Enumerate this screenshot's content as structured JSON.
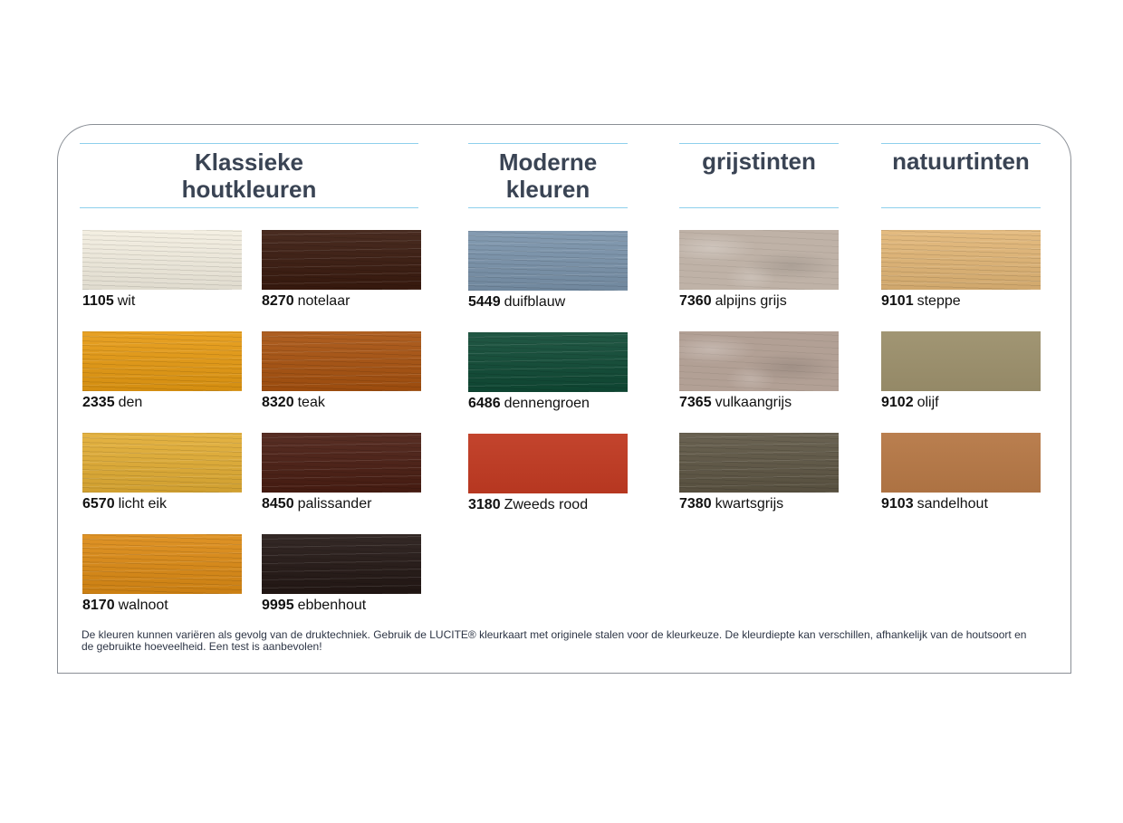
{
  "headings": {
    "classic": {
      "line1": "Klassieke",
      "line2": "houtkleuren"
    },
    "modern": {
      "line1": "Moderne",
      "line2": "kleuren"
    },
    "grey": "grijstinten",
    "nature": "natuurtinten"
  },
  "swatches": [
    {
      "code": "1105",
      "name": "wit",
      "color": "#f3eee0"
    },
    {
      "code": "8270",
      "name": "notelaar",
      "color": "#3a1a0e"
    },
    {
      "code": "2335",
      "name": "den",
      "color": "#e69a12"
    },
    {
      "code": "8320",
      "name": "teak",
      "color": "#a8520f"
    },
    {
      "code": "6570",
      "name": "licht eik",
      "color": "#e2ad34"
    },
    {
      "code": "8450",
      "name": "palissander",
      "color": "#4a1d12"
    },
    {
      "code": "8170",
      "name": "walnoot",
      "color": "#dc8a14"
    },
    {
      "code": "9995",
      "name": "ebbenhout",
      "color": "#231714"
    },
    {
      "code": "5449",
      "name": "duifblauw",
      "color": "#7a93ab"
    },
    {
      "code": "6486",
      "name": "dennengroen",
      "color": "#0f4a35"
    },
    {
      "code": "3180",
      "name": "Zweeds rood",
      "color": "#c03a22"
    },
    {
      "code": "7360",
      "name": "alpijns grijs",
      "color": "#bfb2a7"
    },
    {
      "code": "7365",
      "name": "vulkaangrijs",
      "color": "#b2a095"
    },
    {
      "code": "7380",
      "name": "kwartsgrijs",
      "color": "#5e5644"
    },
    {
      "code": "9101",
      "name": "steppe",
      "color": "#e2b676"
    },
    {
      "code": "9102",
      "name": "olijf",
      "color": "#9c906c"
    },
    {
      "code": "9103",
      "name": "sandelhout",
      "color": "#b67846"
    }
  ],
  "footnote": "De kleuren kunnen variëren als gevolg van de druktechniek. Gebruik de LUCITE® kleurkaart met originele stalen voor de kleurkeuze. De kleurdiepte kan verschillen, afhankelijk van de houtsoort en de gebruikte hoeveelheid. Een test is aanbevolen!"
}
